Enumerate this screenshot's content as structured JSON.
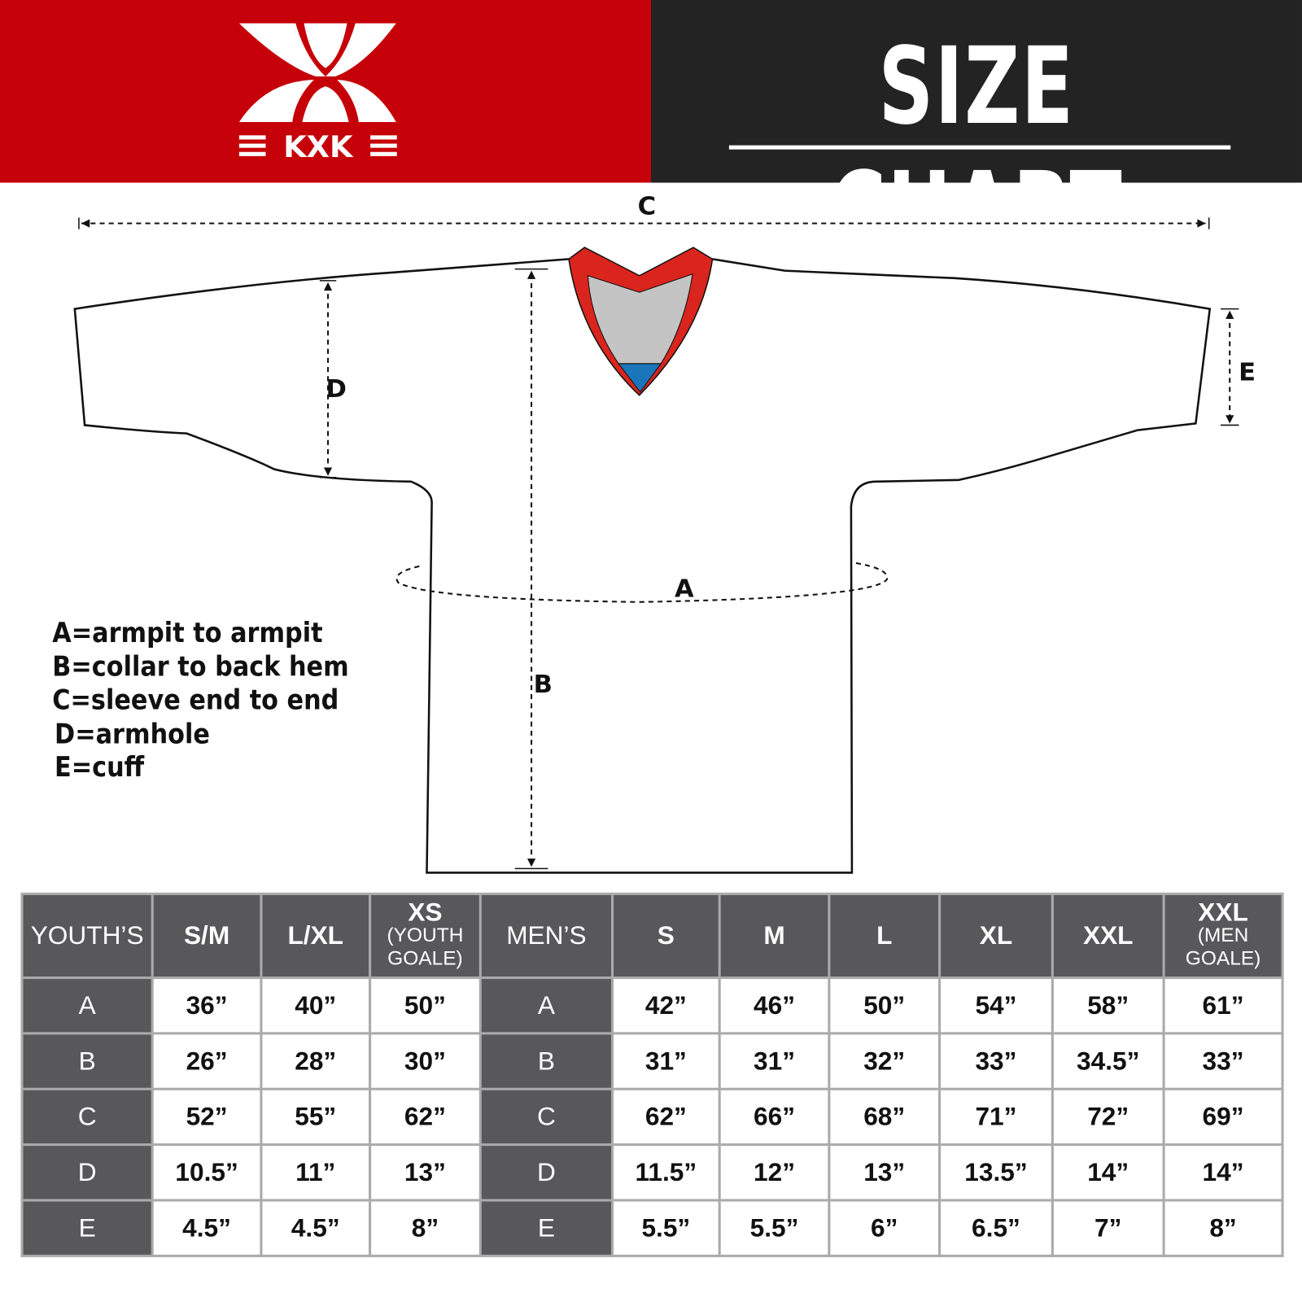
{
  "brand": {
    "logo_text": "KXK",
    "colors": {
      "red": "#c50008",
      "dark": "#232323",
      "header_cell": "#58585a",
      "collar_red": "#d9251d",
      "collar_gray": "#c4c4c4",
      "collar_blue": "#1b75bb"
    }
  },
  "header": {
    "title": "SIZE CHART"
  },
  "diagram": {
    "labels": {
      "a": "A",
      "b": "B",
      "c": "C",
      "d": "D",
      "e": "E"
    }
  },
  "legend": [
    "A=armpit to armpit",
    "B=collar to back hem",
    "C=sleeve end to end",
    "D=armhole",
    "E=cuff"
  ],
  "table": {
    "youth_header": "YOUTH’S",
    "men_header": "MEN’S",
    "youth_sizes": [
      {
        "main": "S/M"
      },
      {
        "main": "L/XL"
      },
      {
        "main": "XS",
        "sub1": "(YOUTH",
        "sub2": "GOALE)"
      }
    ],
    "men_sizes": [
      {
        "main": "S"
      },
      {
        "main": "M"
      },
      {
        "main": "L"
      },
      {
        "main": "XL"
      },
      {
        "main": "XXL"
      },
      {
        "main": "XXL",
        "sub1": "(MEN",
        "sub2": "GOALE)"
      }
    ],
    "rows": [
      {
        "label": "A",
        "youth": [
          "36”",
          "40”",
          "50”"
        ],
        "men": [
          "42”",
          "46”",
          "50”",
          "54”",
          "58”",
          "61”"
        ]
      },
      {
        "label": "B",
        "youth": [
          "26”",
          "28”",
          "30”"
        ],
        "men": [
          "31”",
          "31”",
          "32”",
          "33”",
          "34.5”",
          "33”"
        ]
      },
      {
        "label": "C",
        "youth": [
          "52”",
          "55”",
          "62”"
        ],
        "men": [
          "62”",
          "66”",
          "68”",
          "71”",
          "72”",
          "69”"
        ]
      },
      {
        "label": "D",
        "youth": [
          "10.5”",
          "11”",
          "13”"
        ],
        "men": [
          "11.5”",
          "12”",
          "13”",
          "13.5”",
          "14”",
          "14”"
        ]
      },
      {
        "label": "E",
        "youth": [
          "4.5”",
          "4.5”",
          "8”"
        ],
        "men": [
          "5.5”",
          "5.5”",
          "6”",
          "6.5”",
          "7”",
          "8”"
        ]
      }
    ]
  }
}
